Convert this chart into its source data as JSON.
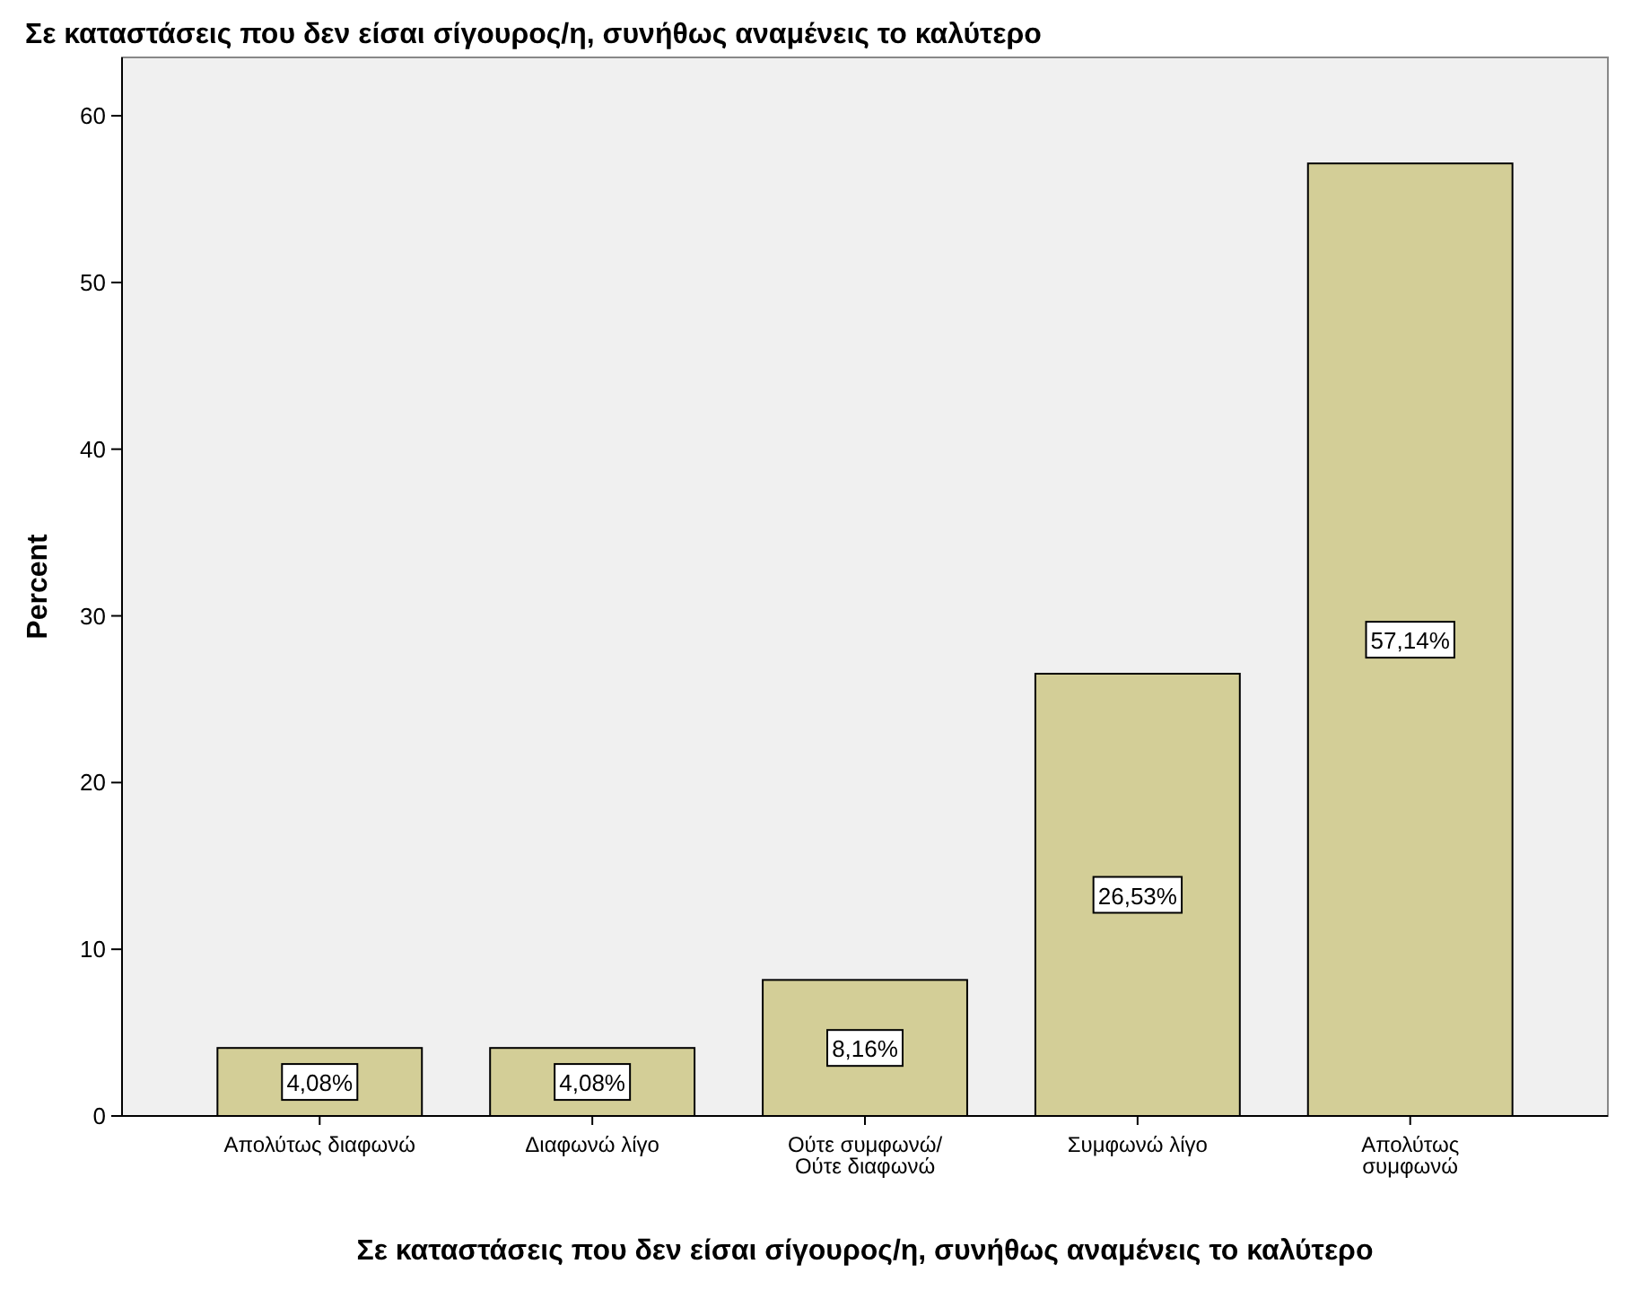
{
  "chart_data": {
    "type": "bar",
    "title": "Σε καταστάσεις που δεν είσαι σίγουρος/η, συνήθως αναμένεις το καλύτερο",
    "xlabel": "Σε καταστάσεις που δεν είσαι σίγουρος/η, συνήθως αναμένεις το καλύτερο",
    "ylabel": "Percent",
    "categories": [
      "Απολύτως διαφωνώ",
      "Διαφωνώ λίγο",
      "Ούτε συμφωνώ/\nΟύτε διαφωνώ",
      "Συμφωνώ λίγο",
      "Απολύτως\nσυμφωνώ"
    ],
    "values": [
      4.08,
      4.08,
      8.16,
      26.53,
      57.14
    ],
    "value_labels": [
      "4,08%",
      "4,08%",
      "8,16%",
      "26,53%",
      "57,14%"
    ],
    "color": "#d3ce97",
    "ylim": [
      0,
      63.5
    ],
    "yticks": [
      0,
      10,
      20,
      30,
      40,
      50,
      60
    ],
    "grid": false
  }
}
